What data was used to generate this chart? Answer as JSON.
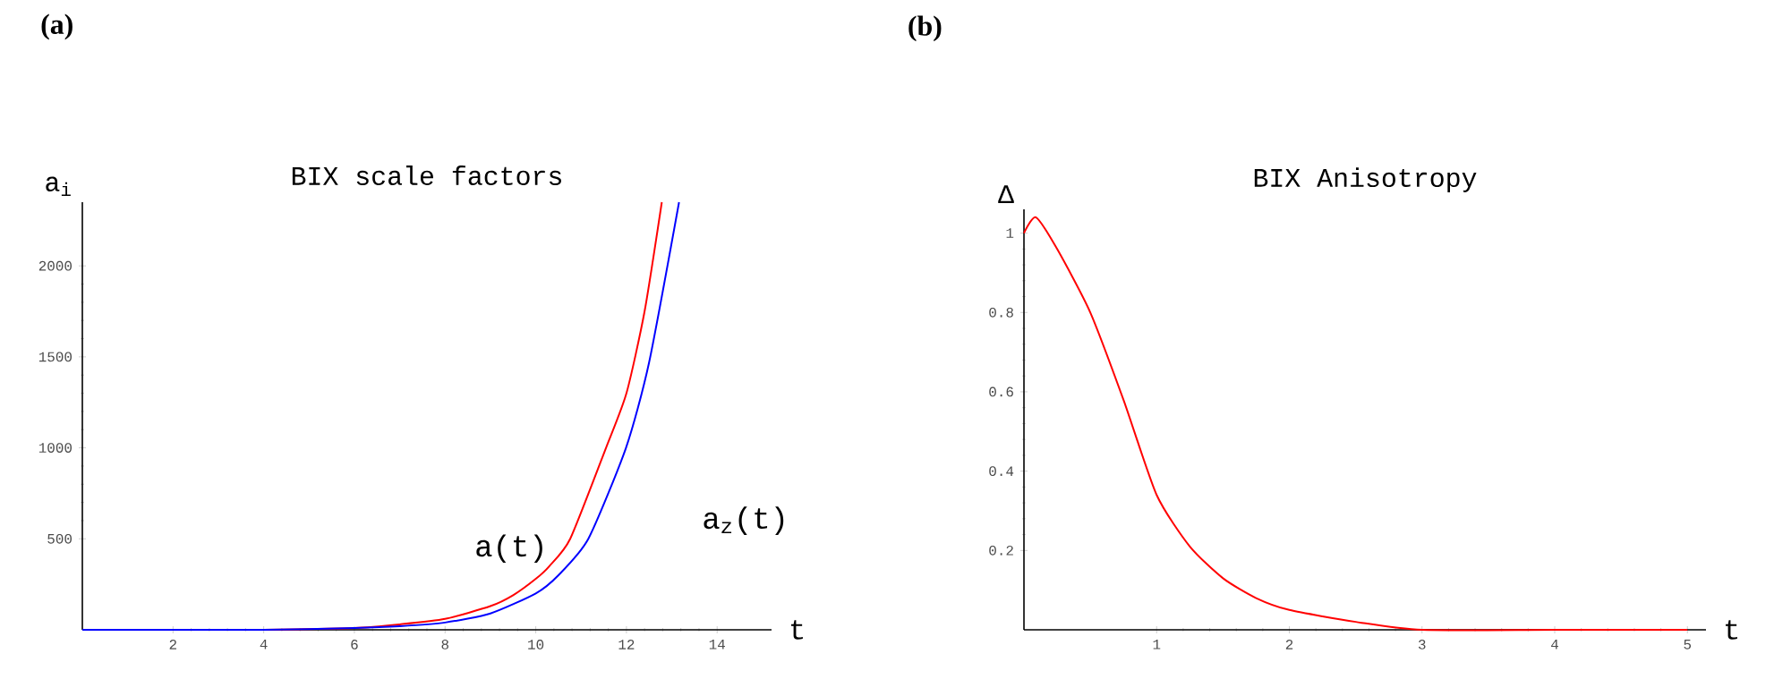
{
  "chart_data": [
    {
      "type": "line",
      "title": "BIX scale factors",
      "xlabel": "t",
      "ylabel": "a$_{i}$",
      "xlim": [
        0,
        15.2
      ],
      "ylim": [
        0,
        2350
      ],
      "xticks": [
        2,
        4,
        6,
        8,
        10,
        12,
        14
      ],
      "yticks": [
        500,
        1000,
        1500,
        2000
      ],
      "series": [
        {
          "color": "#ff0000",
          "x": [
            4,
            6,
            7,
            8,
            9,
            9.5,
            10,
            10.3,
            10.76,
            11.55,
            12,
            12.4,
            12.78
          ],
          "values": [
            0,
            10,
            30,
            60,
            130,
            190,
            280,
            350,
            500,
            1000,
            1300,
            1750,
            2350
          ]
        },
        {
          "color": "#0000ff",
          "x": [
            0,
            2,
            4,
            6,
            7,
            8,
            9,
            10,
            10.5,
            11.16,
            11.99,
            12.5,
            13.16
          ],
          "values": [
            0,
            0,
            0,
            10,
            20,
            40,
            90,
            200,
            300,
            500,
            1000,
            1470,
            2350
          ]
        }
      ],
      "annotations": [
        "(a)",
        "a(t)",
        "a$_{z}$(t)"
      ]
    },
    {
      "type": "line",
      "title": "BIX Anisotropy",
      "xlabel": "t",
      "ylabel": "Δ",
      "xlim": [
        0,
        5.14
      ],
      "ylim": [
        0,
        1.06
      ],
      "xticks": [
        1,
        2,
        3,
        4,
        5
      ],
      "yticks": [
        0.2,
        0.4,
        0.6,
        0.8,
        1
      ],
      "series": [
        {
          "color": "#ff0000",
          "x": [
            0,
            0.09,
            0.25,
            0.5,
            0.75,
            1,
            1.25,
            1.5,
            1.75,
            2,
            2.5,
            3,
            4,
            5
          ],
          "values": [
            1.0,
            1.04,
            0.96,
            0.8,
            0.58,
            0.34,
            0.21,
            0.13,
            0.08,
            0.05,
            0.02,
            0,
            0,
            0
          ]
        }
      ],
      "annotations": [
        "(b)"
      ]
    }
  ]
}
